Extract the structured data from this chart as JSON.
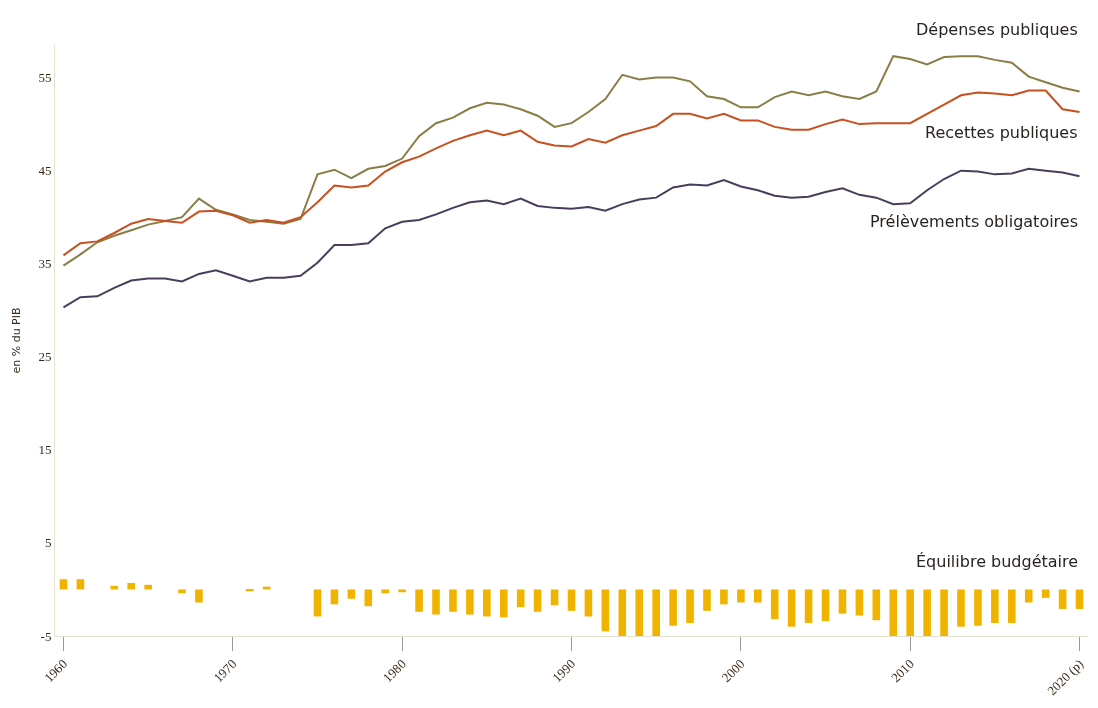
{
  "chart_data": {
    "type": "line",
    "ylabel": "en % du PIB",
    "x": [
      1960,
      1961,
      1962,
      1963,
      1964,
      1965,
      1966,
      1967,
      1968,
      1969,
      1970,
      1971,
      1972,
      1973,
      1974,
      1975,
      1976,
      1977,
      1978,
      1979,
      1980,
      1981,
      1982,
      1983,
      1984,
      1985,
      1986,
      1987,
      1988,
      1989,
      1990,
      1991,
      1992,
      1993,
      1994,
      1995,
      1996,
      1997,
      1998,
      1999,
      2000,
      2001,
      2002,
      2003,
      2004,
      2005,
      2006,
      2007,
      2008,
      2009,
      2010,
      2011,
      2012,
      2013,
      2014,
      2015,
      2016,
      2017,
      2018,
      2019,
      2020
    ],
    "series": [
      {
        "name": "Dépenses publiques",
        "color": "#8a7d45",
        "values": [
          34.8,
          36.0,
          37.3,
          38.0,
          38.6,
          39.2,
          39.6,
          40.0,
          42.0,
          40.8,
          40.3,
          39.7,
          39.5,
          39.3,
          39.8,
          44.6,
          45.1,
          44.2,
          45.2,
          45.5,
          46.3,
          48.7,
          50.1,
          50.7,
          51.7,
          52.3,
          52.1,
          51.6,
          50.9,
          49.7,
          50.1,
          51.3,
          52.7,
          55.3,
          54.8,
          55.0,
          55.0,
          54.6,
          53.0,
          52.7,
          51.8,
          51.8,
          52.9,
          53.5,
          53.1,
          53.5,
          53.0,
          52.7,
          53.5,
          57.3,
          57.0,
          56.4,
          57.2,
          57.3,
          57.3,
          56.9,
          56.6,
          55.1,
          54.5,
          53.9,
          53.5
        ]
      },
      {
        "name": "Recettes publiques",
        "color": "#c8501e",
        "values": [
          35.9,
          37.2,
          37.4,
          38.3,
          39.3,
          39.8,
          39.6,
          39.4,
          40.6,
          40.7,
          40.2,
          39.4,
          39.7,
          39.4,
          40.0,
          41.6,
          43.4,
          43.2,
          43.4,
          44.9,
          45.9,
          46.5,
          47.4,
          48.2,
          48.8,
          49.3,
          48.8,
          49.3,
          48.1,
          47.7,
          47.6,
          48.4,
          48.0,
          48.8,
          49.3,
          49.8,
          51.1,
          51.1,
          50.6,
          51.1,
          50.4,
          50.4,
          49.7,
          49.4,
          49.4,
          50.0,
          50.5,
          50.0,
          50.1,
          50.1,
          50.1,
          51.1,
          52.1,
          53.1,
          53.4,
          53.3,
          53.1,
          53.6,
          53.6,
          51.6,
          51.3
        ]
      },
      {
        "name": "Prélèvements obligatoires",
        "color": "#4a3d5c",
        "values": [
          30.3,
          31.4,
          31.5,
          32.4,
          33.2,
          33.4,
          33.4,
          33.1,
          33.9,
          34.3,
          33.7,
          33.1,
          33.5,
          33.5,
          33.7,
          35.1,
          37.0,
          37.0,
          37.2,
          38.8,
          39.5,
          39.7,
          40.3,
          41.0,
          41.6,
          41.8,
          41.4,
          42.0,
          41.2,
          41.0,
          40.9,
          41.1,
          40.7,
          41.4,
          41.9,
          42.1,
          43.2,
          43.5,
          43.4,
          44.0,
          43.3,
          42.9,
          42.3,
          42.1,
          42.2,
          42.7,
          43.1,
          42.4,
          42.1,
          41.4,
          41.5,
          42.9,
          44.1,
          45.0,
          44.9,
          44.6,
          44.7,
          45.2,
          45.0,
          44.8,
          44.4
        ]
      },
      {
        "name": "Équilibre budgétaire",
        "type": "bar",
        "color": "#f0b400",
        "values": [
          1.1,
          1.1,
          0,
          0.4,
          0.7,
          0.5,
          0,
          -0.4,
          -1.4,
          0,
          0,
          -0.2,
          0.3,
          0,
          0,
          -2.9,
          -1.6,
          -1.0,
          -1.8,
          -0.4,
          -0.3,
          -2.4,
          -2.7,
          -2.4,
          -2.7,
          -2.9,
          -3.0,
          -1.9,
          -2.4,
          -1.7,
          -2.3,
          -2.9,
          -4.5,
          -5.0,
          -5.0,
          -5.0,
          -3.9,
          -3.6,
          -2.3,
          -1.6,
          -1.4,
          -1.4,
          -3.2,
          -4.0,
          -3.6,
          -3.4,
          -2.6,
          -2.8,
          -3.3,
          -5.0,
          -5.0,
          -5.0,
          -5.0,
          -4.0,
          -3.9,
          -3.6,
          -3.6,
          -1.4,
          -0.9,
          -2.1,
          -2.1
        ]
      }
    ],
    "xlim": [
      1959.5,
      2020.5
    ],
    "ylim": [
      -5,
      58.5
    ],
    "xticks": [
      1960,
      1970,
      1980,
      1990,
      2000,
      2010,
      {
        "value": 2020,
        "label": "2020 (p)"
      }
    ],
    "yticks": [
      -5,
      5,
      15,
      25,
      35,
      45,
      55
    ],
    "line_style": "solid",
    "marker": "none"
  }
}
